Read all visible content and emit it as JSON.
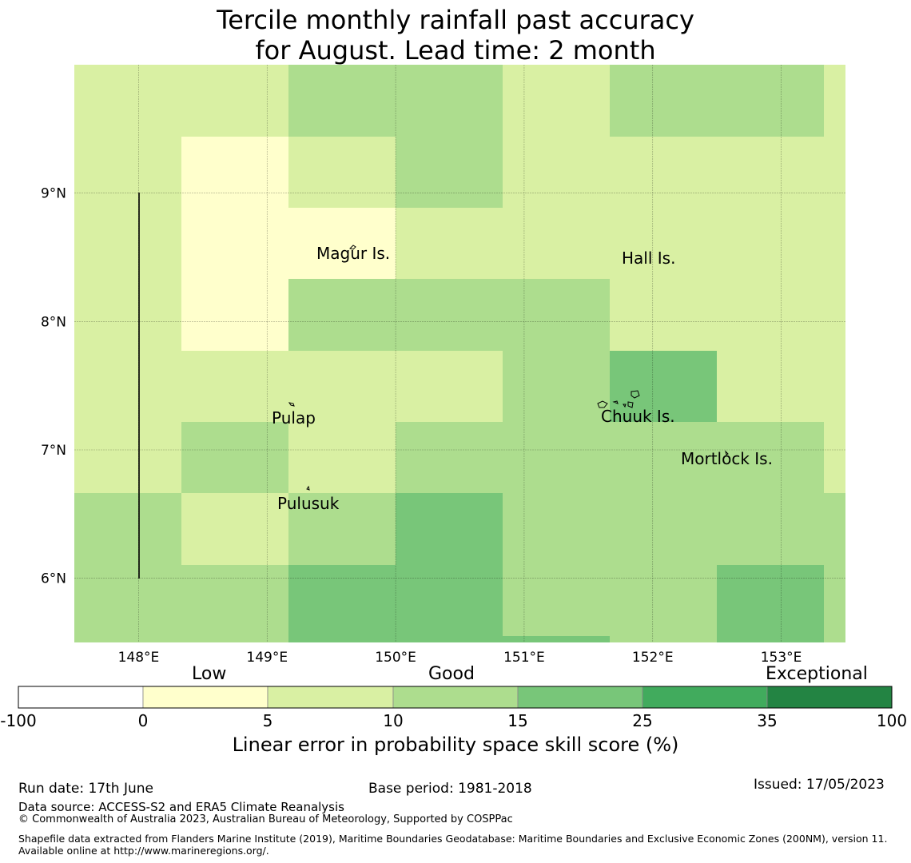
{
  "title_line1": "Tercile monthly rainfall past accuracy",
  "title_line2": "for August. Lead time: 2 month",
  "map": {
    "lon_range": [
      147.5,
      153.5
    ],
    "lat_range": [
      5.5,
      10.0
    ],
    "lon_ticks": [
      "148°E",
      "149°E",
      "150°E",
      "151°E",
      "152°E",
      "153°E"
    ],
    "lat_ticks": [
      "9°N",
      "8°N",
      "7°N",
      "6°N"
    ],
    "places": [
      {
        "name": "Magur Is.",
        "lon": 149.6,
        "lat": 8.55
      },
      {
        "name": "Hall Is.",
        "lon": 151.95,
        "lat": 8.5
      },
      {
        "name": "Pulap",
        "lon": 149.2,
        "lat": 7.25
      },
      {
        "name": "Chuuk Is.",
        "lon": 151.85,
        "lat": 7.27
      },
      {
        "name": "Mortlock Is.",
        "lon": 152.6,
        "lat": 6.93
      },
      {
        "name": "Pulusuk",
        "lon": 149.35,
        "lat": 6.6
      }
    ],
    "grid_skill_bins": [
      [
        2,
        2,
        3,
        3,
        2,
        3,
        3,
        2
      ],
      [
        2,
        1,
        2,
        3,
        2,
        2,
        2,
        2
      ],
      [
        2,
        1,
        1,
        2,
        2,
        2,
        2,
        2
      ],
      [
        2,
        1,
        3,
        3,
        3,
        2,
        2,
        2
      ],
      [
        2,
        2,
        2,
        2,
        3,
        4,
        2,
        2
      ],
      [
        2,
        3,
        2,
        3,
        3,
        3,
        3,
        2
      ],
      [
        3,
        2,
        3,
        4,
        3,
        3,
        3,
        3
      ],
      [
        3,
        3,
        4,
        4,
        3,
        3,
        4,
        3
      ]
    ]
  },
  "colorbar": {
    "categories": [
      "Low",
      "Good",
      "Exceptional"
    ],
    "ticks": [
      "-100",
      "0",
      "5",
      "10",
      "15",
      "25",
      "35",
      "100"
    ],
    "colors": [
      "#ffffff",
      "#ffffcc",
      "#d9f0a3",
      "#addd8e",
      "#78c679",
      "#41ab5d",
      "#238443"
    ],
    "label": "Linear error in probability space skill score (%)"
  },
  "footer": {
    "run_date": "Run date: 17th June",
    "base_period": "Base period: 1981-2018",
    "issued": "Issued: 17/05/2023",
    "data_source": "Data source: ACCESS-S2 and ERA5 Climate Reanalysis",
    "copyright": "© Commonwealth of Australia 2023, Australian Bureau of Meteorology, Supported by COSPPac",
    "shapefile": "Shapefile data extracted from Flanders Marine Institute (2019), Maritime Boundaries Geodatabase: Maritime Boundaries and Exclusive Economic Zones (200NM), version 11. Available online at http://www.marineregions.org/."
  }
}
